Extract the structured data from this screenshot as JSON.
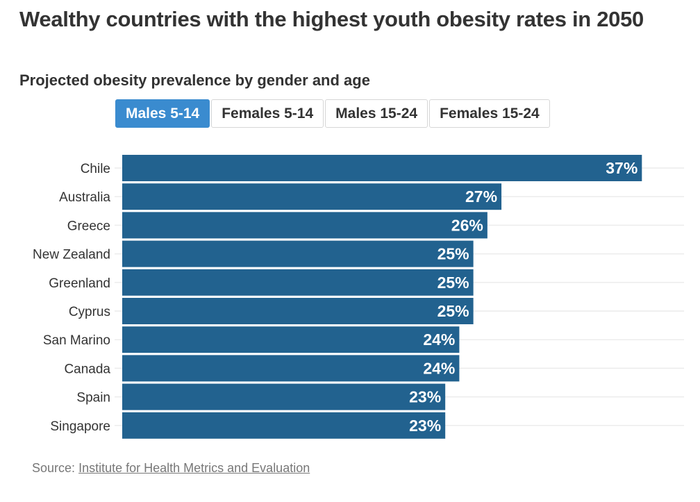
{
  "header": {
    "title": "Wealthy countries with the highest youth obesity rates in 2050",
    "subtitle": "Projected obesity prevalence by gender and age"
  },
  "tabs": [
    {
      "label": "Males 5-14",
      "active": true
    },
    {
      "label": "Females 5-14",
      "active": false
    },
    {
      "label": "Males 15-24",
      "active": false
    },
    {
      "label": "Females 15-24",
      "active": false
    }
  ],
  "colors": {
    "bar": "#22628f",
    "active_tab": "#3a8bcf",
    "gridline": "#ececec"
  },
  "chart_data": {
    "type": "bar",
    "orientation": "horizontal",
    "title": "Wealthy countries with the highest youth obesity rates in 2050",
    "subtitle": "Projected obesity prevalence by gender and age",
    "series_name": "Males 5-14",
    "categories": [
      "Chile",
      "Australia",
      "Greece",
      "New Zealand",
      "Greenland",
      "Cyprus",
      "San Marino",
      "Canada",
      "Spain",
      "Singapore"
    ],
    "values": [
      37,
      27,
      26,
      25,
      25,
      25,
      24,
      24,
      23,
      23
    ],
    "data_labels": [
      "37%",
      "27%",
      "26%",
      "25%",
      "25%",
      "25%",
      "24%",
      "24%",
      "23%",
      "23%"
    ],
    "unit": "%",
    "xlim": [
      0,
      40
    ],
    "xlabel": "",
    "ylabel": "",
    "grid": true
  },
  "footer": {
    "source_prefix": "Source:",
    "source_link": "Institute for Health Metrics and Evaluation"
  }
}
